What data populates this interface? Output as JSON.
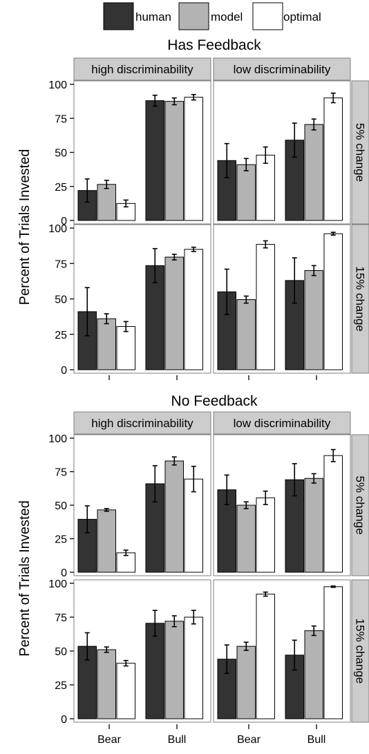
{
  "legend": [
    {
      "key": "human",
      "label": "human",
      "color": "#333333"
    },
    {
      "key": "model",
      "label": "model",
      "color": "#b3b3b3"
    },
    {
      "key": "optimal",
      "label": "optimal",
      "color": "#ffffff"
    }
  ],
  "chart_data": {
    "type": "bar",
    "series_names": [
      "human",
      "model",
      "optimal"
    ],
    "categories": [
      "Bear",
      "Bull"
    ],
    "ylabel": "Percent of Trials Invested",
    "ylim": [
      0,
      100
    ],
    "yticks": [
      0,
      25,
      50,
      75,
      100
    ],
    "column_labels": [
      "high discriminability",
      "low discriminability"
    ],
    "row_labels": [
      "5% change",
      "15% change"
    ],
    "sections": [
      {
        "title": "Has Feedback",
        "panels": [
          {
            "row": 0,
            "col": 0,
            "values": {
              "Bear": [
                22,
                26.5,
                12.5
              ],
              "Bull": [
                88,
                87.5,
                90.5
              ]
            },
            "errors": {
              "Bear": [
                8.5,
                3,
                2.5
              ],
              "Bull": [
                4,
                2.5,
                2
              ]
            }
          },
          {
            "row": 0,
            "col": 1,
            "values": {
              "Bear": [
                44,
                41,
                48
              ],
              "Bull": [
                59,
                70.5,
                90
              ]
            },
            "errors": {
              "Bear": [
                12.5,
                4.5,
                6
              ],
              "Bull": [
                12.5,
                4,
                3.5
              ]
            }
          },
          {
            "row": 1,
            "col": 0,
            "values": {
              "Bear": [
                41,
                36,
                30.5
              ],
              "Bull": [
                73.5,
                79.5,
                85
              ]
            },
            "errors": {
              "Bear": [
                17,
                3.5,
                3.5
              ],
              "Bull": [
                12,
                2,
                1.5
              ]
            }
          },
          {
            "row": 1,
            "col": 1,
            "values": {
              "Bear": [
                55,
                49.5,
                88.5
              ],
              "Bull": [
                63,
                70,
                96
              ]
            },
            "errors": {
              "Bear": [
                16,
                2.5,
                2.5
              ],
              "Bull": [
                16,
                3.5,
                1
              ]
            }
          }
        ]
      },
      {
        "title": "No Feedback",
        "panels": [
          {
            "row": 0,
            "col": 0,
            "values": {
              "Bear": [
                39.5,
                46.5,
                14.5
              ],
              "Bull": [
                66,
                83,
                69.5
              ]
            },
            "errors": {
              "Bear": [
                10,
                1,
                2
              ],
              "Bull": [
                13.5,
                3,
                9.5
              ]
            }
          },
          {
            "row": 0,
            "col": 1,
            "values": {
              "Bear": [
                61.5,
                50,
                55.5
              ],
              "Bull": [
                69,
                70,
                87
              ]
            },
            "errors": {
              "Bear": [
                11,
                2.5,
                5
              ],
              "Bull": [
                12,
                3.5,
                4.5
              ]
            }
          },
          {
            "row": 1,
            "col": 0,
            "values": {
              "Bear": [
                53.5,
                51,
                41
              ],
              "Bull": [
                70.5,
                72,
                75
              ]
            },
            "errors": {
              "Bear": [
                10,
                2,
                2
              ],
              "Bull": [
                9.5,
                4,
                5
              ]
            }
          },
          {
            "row": 1,
            "col": 1,
            "values": {
              "Bear": [
                44,
                53.5,
                92
              ],
              "Bull": [
                47,
                65,
                97.5
              ]
            },
            "errors": {
              "Bear": [
                10.5,
                3,
                1.5
              ],
              "Bull": [
                11,
                3.5,
                0.5
              ]
            }
          }
        ]
      }
    ]
  }
}
